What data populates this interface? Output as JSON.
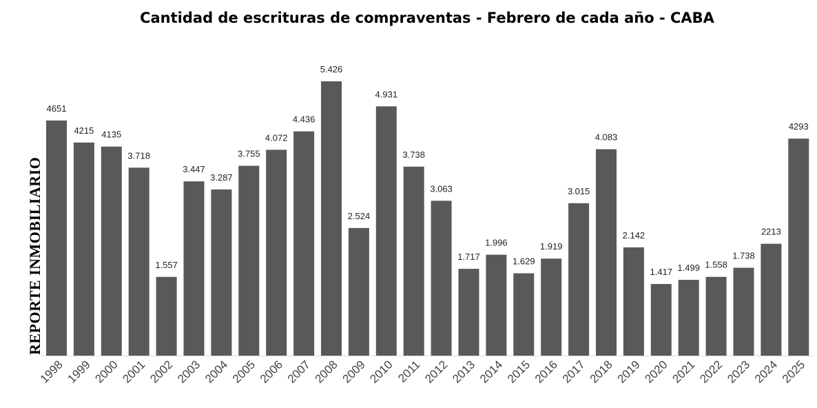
{
  "chart_data": {
    "type": "bar",
    "title": "Cantidad de escrituras de compraventas - Febrero de cada año - CABA",
    "watermark": "REPORTE INMOBILIARIO",
    "categories": [
      "1998",
      "1999",
      "2000",
      "2001",
      "2002",
      "2003",
      "2004",
      "2005",
      "2006",
      "2007",
      "2008",
      "2009",
      "2010",
      "2011",
      "2012",
      "2013",
      "2014",
      "2015",
      "2016",
      "2017",
      "2018",
      "2019",
      "2020",
      "2021",
      "2022",
      "2023",
      "2024",
      "2025"
    ],
    "values": [
      4651,
      4215,
      4135,
      3718,
      1557,
      3447,
      3287,
      3755,
      4072,
      4436,
      5426,
      2524,
      4931,
      3738,
      3063,
      1717,
      1996,
      1629,
      1919,
      3015,
      4083,
      2142,
      1417,
      1499,
      1558,
      1738,
      2213,
      4293
    ],
    "data_labels": [
      "4651",
      "4215",
      "4135",
      "3.718",
      "1.557",
      "3.447",
      "3.287",
      "3.755",
      "4.072",
      "4.436",
      "5.426",
      "2.524",
      "4.931",
      "3.738",
      "3.063",
      "1.717",
      "1.996",
      "1.629",
      "1.919",
      "3.015",
      "4.083",
      "2.142",
      "1.417",
      "1.499",
      "1.558",
      "1.738",
      "2213",
      "4293"
    ],
    "bar_color": "#595959",
    "xlabel": "",
    "ylabel": "",
    "grid": false,
    "legend": "none"
  }
}
